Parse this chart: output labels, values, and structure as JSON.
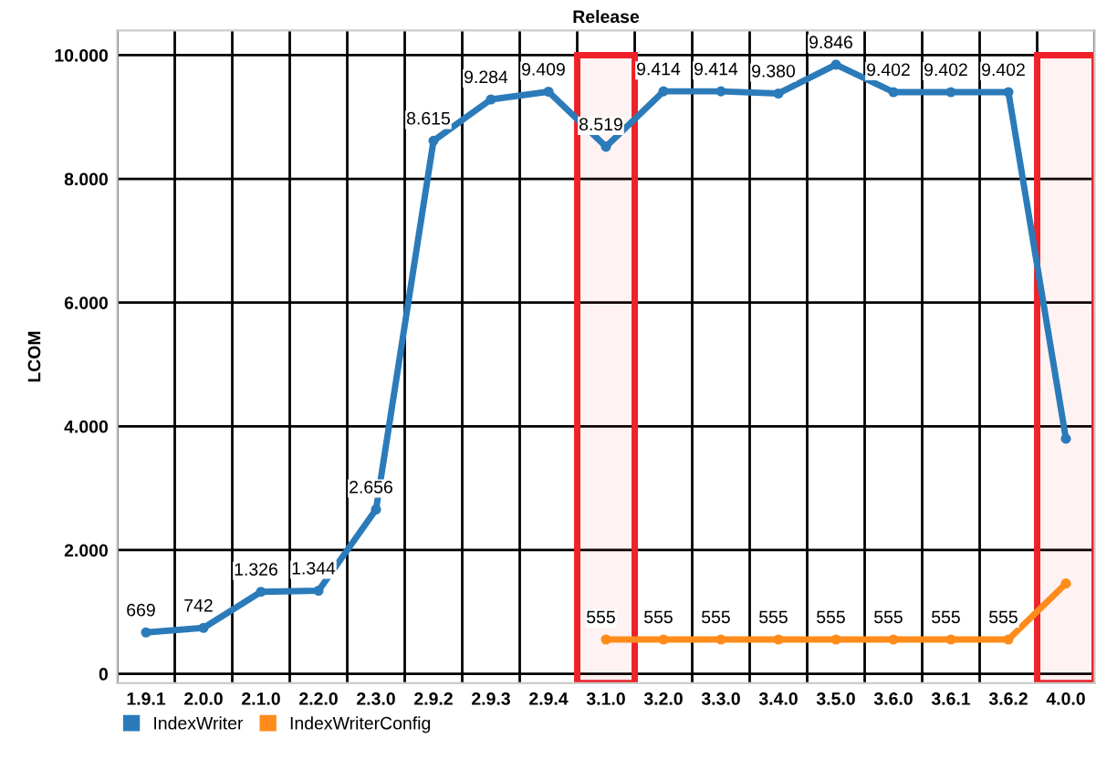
{
  "chart_data": {
    "type": "line",
    "xlabel": "Release",
    "ylabel": "LCOM",
    "categories": [
      "1.9.1",
      "2.0.0",
      "2.1.0",
      "2.2.0",
      "2.3.0",
      "2.9.2",
      "2.9.3",
      "2.9.4",
      "3.1.0",
      "3.2.0",
      "3.3.0",
      "3.4.0",
      "3.5.0",
      "3.6.0",
      "3.6.1",
      "3.6.2",
      "4.0.0"
    ],
    "series": [
      {
        "name": "IndexWriter",
        "color": "#2b7bba",
        "values": [
          669,
          742,
          1326,
          1344,
          2656,
          8615,
          9284,
          9409,
          8519,
          9414,
          9414,
          9380,
          9846,
          9402,
          9402,
          9402,
          3800
        ],
        "value_labels": [
          "669",
          "742",
          "1.326",
          "1.344",
          "2.656",
          "8.615",
          "9.284",
          "9.409",
          "8.519",
          "9.414",
          "9.414",
          "9.380",
          "9.846",
          "9.402",
          "9.402",
          "9.402",
          null
        ]
      },
      {
        "name": "IndexWriterConfig",
        "color": "#ff8c1a",
        "values": [
          null,
          null,
          null,
          null,
          null,
          null,
          null,
          null,
          555,
          555,
          555,
          555,
          555,
          555,
          555,
          555,
          1460
        ],
        "value_labels": [
          null,
          null,
          null,
          null,
          null,
          null,
          null,
          null,
          "555",
          "555",
          "555",
          "555",
          "555",
          "555",
          "555",
          "555",
          null
        ]
      }
    ],
    "ylim": [
      -150,
      10400
    ],
    "yticks": [
      {
        "value": 0,
        "label": "0"
      },
      {
        "value": 2000,
        "label": "2.000"
      },
      {
        "value": 4000,
        "label": "4.000"
      },
      {
        "value": 6000,
        "label": "6.000"
      },
      {
        "value": 8000,
        "label": "8.000"
      },
      {
        "value": 10000,
        "label": "10.000"
      }
    ],
    "bands": [
      {
        "axis": "x",
        "from": "3.1.0",
        "to": "3.1.0",
        "color": "#ee2228"
      },
      {
        "axis": "x",
        "from": "4.0.0",
        "to": "4.0.0",
        "color": "#ee2228"
      }
    ],
    "grid": true,
    "legend": "bottom left",
    "marker": "circle",
    "line_style": "solid"
  }
}
